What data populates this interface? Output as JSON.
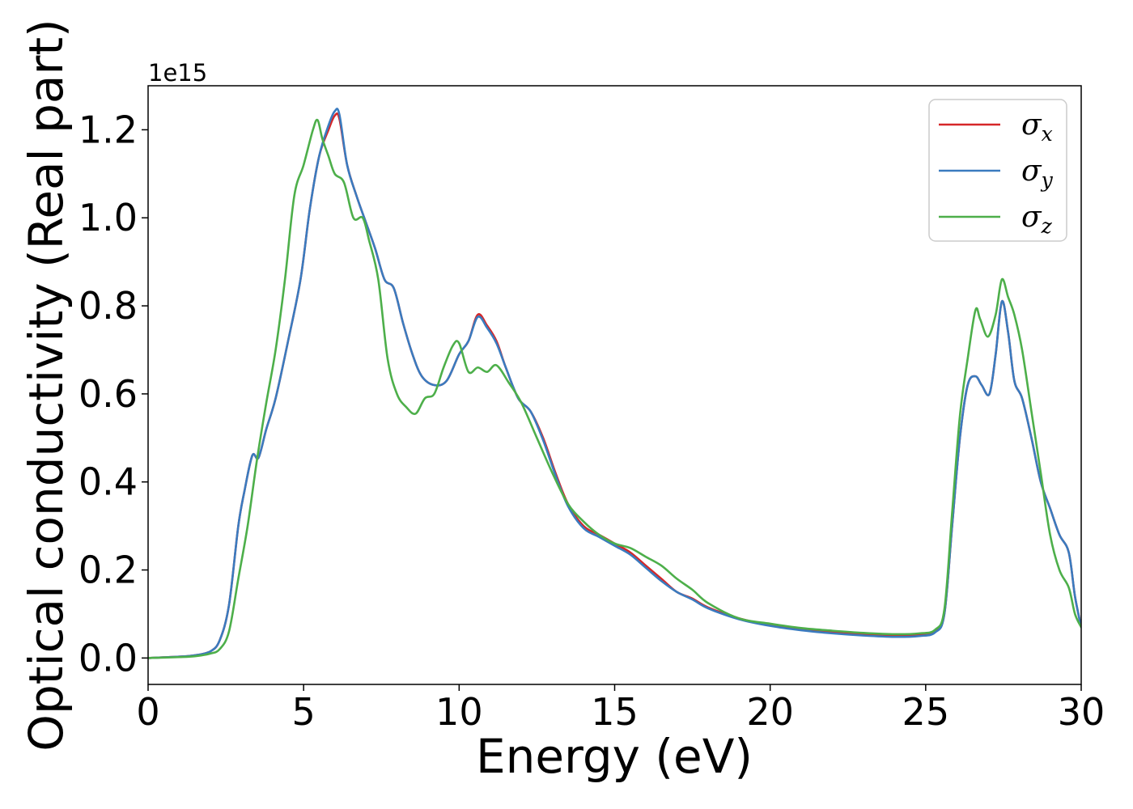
{
  "chart_data": {
    "type": "line",
    "title": "",
    "xlabel": "Energy (eV)",
    "ylabel": "Optical conductivity (Real part)",
    "y_offset_label": "1e15",
    "xlim": [
      0,
      30
    ],
    "ylim": [
      -0.06,
      1.3
    ],
    "xticks": [
      0,
      5,
      10,
      15,
      20,
      25,
      30
    ],
    "xtick_labels": [
      "0",
      "5",
      "10",
      "15",
      "20",
      "25",
      "30"
    ],
    "yticks": [
      0.0,
      0.2,
      0.4,
      0.6,
      0.8,
      1.0,
      1.2
    ],
    "ytick_labels": [
      "0.0",
      "0.2",
      "0.4",
      "0.6",
      "0.8",
      "1.0",
      "1.2"
    ],
    "grid": false,
    "legend_position": "top-right",
    "series": [
      {
        "name": "σx",
        "legend_symbol": "σ",
        "legend_subscript": "x",
        "color": "#d62728",
        "x": [
          0,
          1,
          1.5,
          2,
          2.3,
          2.6,
          2.9,
          3.1,
          3.35,
          3.55,
          3.8,
          4.1,
          4.5,
          4.9,
          5.2,
          5.5,
          5.8,
          6.0,
          6.15,
          6.4,
          6.7,
          7.0,
          7.3,
          7.6,
          7.9,
          8.2,
          8.5,
          8.8,
          9.2,
          9.6,
          10.0,
          10.3,
          10.6,
          10.9,
          11.2,
          11.5,
          11.9,
          12.3,
          12.7,
          13.1,
          13.5,
          14.0,
          14.5,
          15.0,
          15.5,
          16.0,
          16.5,
          17.0,
          17.5,
          18.0,
          19.0,
          20.0,
          21.0,
          22.0,
          23.0,
          24.0,
          24.8,
          25.3,
          25.6,
          25.85,
          26.1,
          26.35,
          26.6,
          26.8,
          27.05,
          27.25,
          27.45,
          27.65,
          27.85,
          28.1,
          28.4,
          28.7,
          29.0,
          29.3,
          29.6,
          29.8,
          30.0
        ],
        "y": [
          0.0,
          0.003,
          0.006,
          0.015,
          0.04,
          0.12,
          0.3,
          0.38,
          0.46,
          0.455,
          0.52,
          0.59,
          0.72,
          0.86,
          1.02,
          1.14,
          1.2,
          1.232,
          1.225,
          1.12,
          1.05,
          0.99,
          0.93,
          0.86,
          0.84,
          0.76,
          0.69,
          0.64,
          0.62,
          0.63,
          0.69,
          0.72,
          0.78,
          0.755,
          0.72,
          0.66,
          0.59,
          0.56,
          0.5,
          0.42,
          0.35,
          0.3,
          0.28,
          0.26,
          0.24,
          0.21,
          0.18,
          0.15,
          0.135,
          0.115,
          0.09,
          0.075,
          0.065,
          0.058,
          0.053,
          0.05,
          0.052,
          0.06,
          0.1,
          0.3,
          0.5,
          0.62,
          0.64,
          0.62,
          0.6,
          0.69,
          0.81,
          0.74,
          0.63,
          0.59,
          0.5,
          0.4,
          0.34,
          0.28,
          0.24,
          0.14,
          0.07
        ]
      },
      {
        "name": "σy",
        "legend_symbol": "σ",
        "legend_subscript": "y",
        "color": "#3a7bbf",
        "x": [
          0,
          1,
          1.5,
          2,
          2.3,
          2.6,
          2.9,
          3.1,
          3.35,
          3.55,
          3.8,
          4.1,
          4.5,
          4.9,
          5.2,
          5.5,
          5.8,
          6.0,
          6.15,
          6.4,
          6.7,
          7.0,
          7.3,
          7.6,
          7.9,
          8.2,
          8.5,
          8.8,
          9.2,
          9.6,
          10.0,
          10.3,
          10.6,
          10.9,
          11.2,
          11.5,
          11.9,
          12.3,
          12.7,
          13.1,
          13.5,
          14.0,
          14.5,
          15.0,
          15.5,
          16.0,
          16.5,
          17.0,
          17.5,
          18.0,
          19.0,
          20.0,
          21.0,
          22.0,
          23.0,
          24.0,
          24.8,
          25.3,
          25.6,
          25.85,
          26.1,
          26.35,
          26.6,
          26.8,
          27.05,
          27.25,
          27.45,
          27.65,
          27.85,
          28.1,
          28.4,
          28.7,
          29.0,
          29.3,
          29.6,
          29.8,
          30.0
        ],
        "y": [
          0.0,
          0.003,
          0.006,
          0.015,
          0.04,
          0.12,
          0.3,
          0.38,
          0.46,
          0.455,
          0.52,
          0.59,
          0.72,
          0.86,
          1.02,
          1.14,
          1.21,
          1.242,
          1.235,
          1.12,
          1.05,
          0.99,
          0.93,
          0.86,
          0.84,
          0.76,
          0.69,
          0.64,
          0.62,
          0.63,
          0.69,
          0.72,
          0.775,
          0.75,
          0.715,
          0.66,
          0.59,
          0.56,
          0.495,
          0.415,
          0.345,
          0.295,
          0.275,
          0.255,
          0.235,
          0.205,
          0.175,
          0.15,
          0.133,
          0.113,
          0.088,
          0.073,
          0.063,
          0.056,
          0.051,
          0.048,
          0.05,
          0.058,
          0.1,
          0.3,
          0.5,
          0.62,
          0.64,
          0.62,
          0.6,
          0.69,
          0.81,
          0.74,
          0.63,
          0.59,
          0.5,
          0.4,
          0.34,
          0.28,
          0.24,
          0.14,
          0.07
        ]
      },
      {
        "name": "σz",
        "legend_symbol": "σ",
        "legend_subscript": "z",
        "color": "#4daf4a",
        "x": [
          0,
          1,
          1.5,
          2,
          2.3,
          2.6,
          2.9,
          3.2,
          3.5,
          3.8,
          4.1,
          4.4,
          4.7,
          5.0,
          5.3,
          5.45,
          5.6,
          5.8,
          6.0,
          6.3,
          6.6,
          6.9,
          7.1,
          7.4,
          7.7,
          8.0,
          8.3,
          8.6,
          8.9,
          9.2,
          9.5,
          9.8,
          10.0,
          10.3,
          10.6,
          10.9,
          11.2,
          11.6,
          12.0,
          12.5,
          13.0,
          13.5,
          14.0,
          14.5,
          15.0,
          15.5,
          16.0,
          16.5,
          17.0,
          17.5,
          18.0,
          19.0,
          20.0,
          21.0,
          22.0,
          23.0,
          24.0,
          24.8,
          25.3,
          25.6,
          25.85,
          26.1,
          26.35,
          26.6,
          26.75,
          27.0,
          27.25,
          27.45,
          27.65,
          27.85,
          28.1,
          28.4,
          28.7,
          29.0,
          29.3,
          29.6,
          29.8,
          30.0
        ],
        "y": [
          0.0,
          0.002,
          0.004,
          0.01,
          0.02,
          0.06,
          0.18,
          0.3,
          0.45,
          0.58,
          0.7,
          0.86,
          1.05,
          1.12,
          1.2,
          1.222,
          1.18,
          1.14,
          1.1,
          1.08,
          1.0,
          1.0,
          0.95,
          0.86,
          0.68,
          0.6,
          0.57,
          0.555,
          0.59,
          0.6,
          0.66,
          0.71,
          0.715,
          0.65,
          0.66,
          0.65,
          0.665,
          0.625,
          0.58,
          0.5,
          0.42,
          0.35,
          0.31,
          0.28,
          0.26,
          0.25,
          0.23,
          0.21,
          0.18,
          0.155,
          0.125,
          0.09,
          0.078,
          0.068,
          0.062,
          0.057,
          0.054,
          0.056,
          0.064,
          0.11,
          0.33,
          0.55,
          0.68,
          0.79,
          0.77,
          0.73,
          0.78,
          0.86,
          0.82,
          0.78,
          0.7,
          0.56,
          0.42,
          0.28,
          0.2,
          0.16,
          0.1,
          0.07
        ]
      }
    ]
  }
}
